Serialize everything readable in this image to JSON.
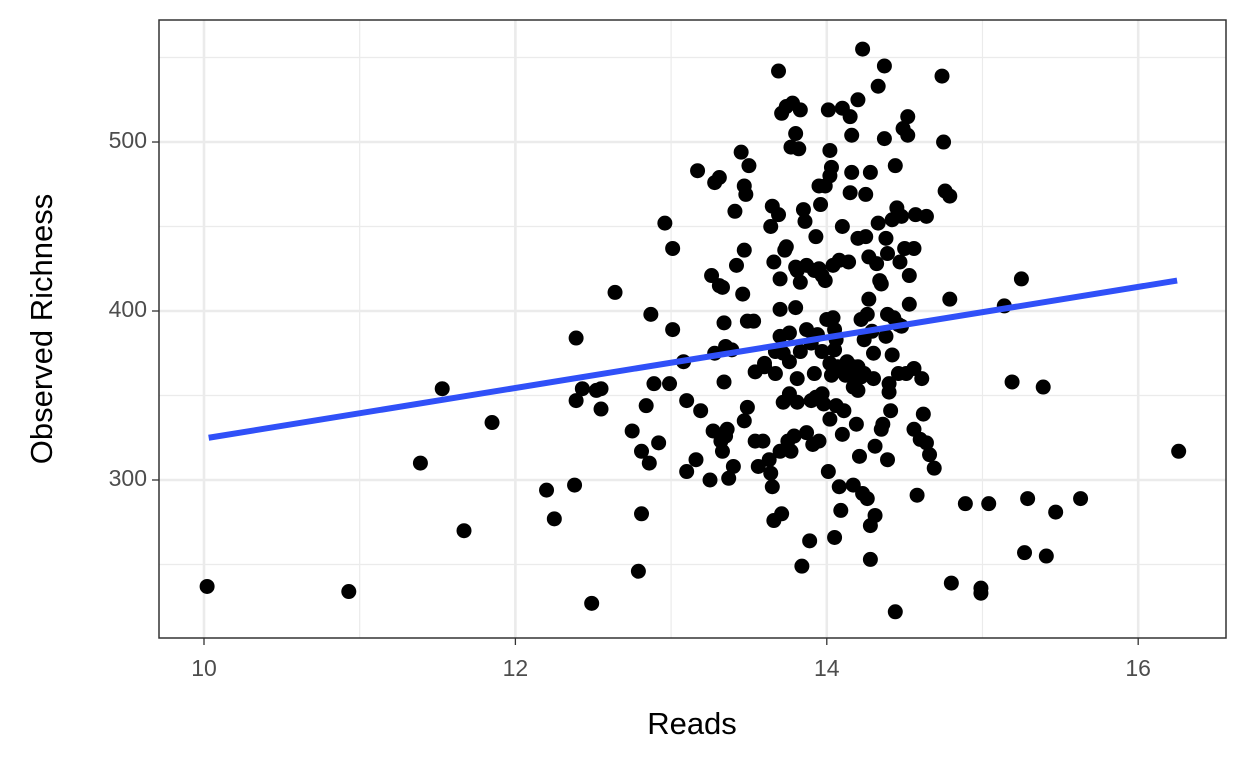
{
  "chart_data": {
    "type": "scatter",
    "x_label": "Reads",
    "y_label": "Observed Richness",
    "xlim": [
      9.711,
      16.564
    ],
    "ylim": [
      206.5,
      572.2
    ],
    "xticks": [
      10,
      12,
      14,
      16
    ],
    "yticks": [
      300,
      400,
      500
    ],
    "grid": true,
    "color": "#000000",
    "x": [
      10.02,
      10.93,
      11.39,
      11.53,
      11.67,
      11.85,
      12.2,
      12.25,
      12.38,
      12.39,
      12.39,
      12.43,
      12.49,
      12.52,
      12.55,
      12.55,
      12.64,
      12.75,
      12.79,
      12.81,
      12.81,
      12.84,
      12.86,
      12.87,
      12.89,
      12.92,
      12.96,
      12.99,
      13.01,
      13.01,
      13.08,
      13.1,
      13.1,
      13.16,
      13.17,
      13.19,
      13.25,
      13.26,
      13.27,
      13.28,
      13.28,
      13.31,
      13.31,
      13.32,
      13.33,
      13.33,
      13.34,
      13.34,
      13.35,
      13.35,
      13.36,
      13.37,
      13.39,
      13.4,
      13.41,
      13.42,
      13.45,
      13.46,
      13.47,
      13.47,
      13.47,
      13.48,
      13.49,
      13.49,
      13.5,
      13.53,
      13.54,
      13.54,
      13.56,
      13.59,
      13.6,
      13.6,
      13.63,
      13.64,
      13.64,
      13.65,
      13.65,
      13.66,
      13.66,
      13.67,
      13.67,
      13.69,
      13.69,
      13.7,
      13.7,
      13.7,
      13.7,
      13.71,
      13.71,
      13.72,
      13.72,
      13.73,
      13.74,
      13.74,
      13.75,
      13.76,
      13.76,
      13.76,
      13.77,
      13.77,
      13.78,
      13.79,
      13.8,
      13.8,
      13.8,
      13.81,
      13.81,
      13.81,
      13.82,
      13.83,
      13.83,
      13.83,
      13.84,
      13.85,
      13.86,
      13.87,
      13.87,
      13.87,
      13.89,
      13.9,
      13.9,
      13.91,
      13.92,
      13.92,
      13.93,
      13.93,
      13.94,
      13.95,
      13.95,
      13.95,
      13.96,
      13.97,
      13.97,
      13.97,
      13.98,
      13.99,
      13.99,
      14.0,
      14.01,
      14.01,
      14.02,
      14.02,
      14.02,
      14.02,
      14.03,
      14.03,
      14.04,
      14.04,
      14.05,
      14.05,
      14.05,
      14.06,
      14.06,
      14.07,
      14.08,
      14.08,
      14.09,
      14.1,
      14.1,
      14.1,
      14.11,
      14.12,
      14.13,
      14.14,
      14.15,
      14.15,
      14.16,
      14.16,
      14.17,
      14.17,
      14.17,
      14.18,
      14.19,
      14.2,
      14.2,
      14.2,
      14.2,
      14.21,
      14.22,
      14.22,
      14.23,
      14.23,
      14.24,
      14.24,
      14.25,
      14.25,
      14.26,
      14.26,
      14.27,
      14.27,
      14.28,
      14.28,
      14.28,
      14.29,
      14.3,
      14.3,
      14.31,
      14.31,
      14.32,
      14.33,
      14.33,
      14.34,
      14.35,
      14.35,
      14.36,
      14.37,
      14.37,
      14.38,
      14.38,
      14.39,
      14.39,
      14.39,
      14.4,
      14.4,
      14.41,
      14.42,
      14.42,
      14.43,
      14.44,
      14.44,
      14.45,
      14.46,
      14.46,
      14.47,
      14.48,
      14.48,
      14.49,
      14.5,
      14.51,
      14.52,
      14.52,
      14.53,
      14.53,
      14.56,
      14.56,
      14.56,
      14.57,
      14.58,
      14.6,
      14.61,
      14.62,
      14.64,
      14.64,
      14.66,
      14.69,
      14.74,
      14.75,
      14.76,
      14.79,
      14.79,
      14.8,
      14.89,
      14.99,
      14.99,
      15.04,
      15.14,
      15.19,
      15.25,
      15.27,
      15.29,
      15.39,
      15.41,
      15.47,
      15.63,
      16.26
    ],
    "values": [
      237,
      234,
      310,
      354,
      270,
      334,
      294,
      277,
      297,
      384,
      347,
      354,
      227,
      353,
      354,
      342,
      411,
      329,
      246,
      317,
      280,
      344,
      310,
      398,
      357,
      322,
      452,
      357,
      389,
      437,
      370,
      305,
      347,
      312,
      483,
      341,
      300,
      421,
      329,
      375,
      476,
      415,
      479,
      323,
      317,
      414,
      393,
      358,
      379,
      326,
      330,
      301,
      377,
      308,
      459,
      427,
      494,
      410,
      436,
      335,
      474,
      469,
      394,
      343,
      486,
      394,
      323,
      364,
      308,
      323,
      367,
      369,
      312,
      450,
      304,
      462,
      296,
      276,
      429,
      363,
      376,
      457,
      542,
      317,
      385,
      419,
      401,
      280,
      517,
      346,
      375,
      436,
      521,
      438,
      323,
      370,
      387,
      351,
      497,
      317,
      523,
      326,
      402,
      505,
      426,
      346,
      424,
      360,
      496,
      417,
      376,
      519,
      249,
      460,
      453,
      389,
      427,
      328,
      264,
      347,
      381,
      321,
      424,
      363,
      444,
      349,
      386,
      425,
      474,
      323,
      463,
      421,
      376,
      351,
      345,
      474,
      418,
      395,
      305,
      519,
      495,
      369,
      336,
      480,
      485,
      362,
      396,
      427,
      377,
      266,
      389,
      344,
      383,
      367,
      430,
      296,
      282,
      450,
      327,
      520,
      341,
      362,
      370,
      429,
      515,
      470,
      504,
      482,
      355,
      297,
      367,
      361,
      333,
      525,
      443,
      367,
      353,
      314,
      361,
      395,
      555,
      292,
      383,
      363,
      444,
      469,
      398,
      289,
      407,
      432,
      482,
      253,
      273,
      388,
      375,
      360,
      320,
      279,
      428,
      452,
      533,
      418,
      416,
      330,
      333,
      545,
      502,
      443,
      385,
      312,
      434,
      398,
      357,
      352,
      341,
      454,
      374,
      396,
      222,
      486,
      461,
      392,
      363,
      429,
      456,
      391,
      508,
      437,
      363,
      515,
      504,
      404,
      421,
      330,
      437,
      366,
      457,
      291,
      324,
      360,
      339,
      456,
      322,
      315,
      307,
      539,
      500,
      471,
      468,
      407,
      239,
      286,
      236,
      233,
      286,
      403,
      358,
      419,
      257,
      289,
      355,
      255,
      281,
      289,
      317
    ],
    "trend_line": {
      "x": [
        10.03,
        16.25
      ],
      "values": [
        325,
        418
      ],
      "color": "#3050f8"
    }
  }
}
